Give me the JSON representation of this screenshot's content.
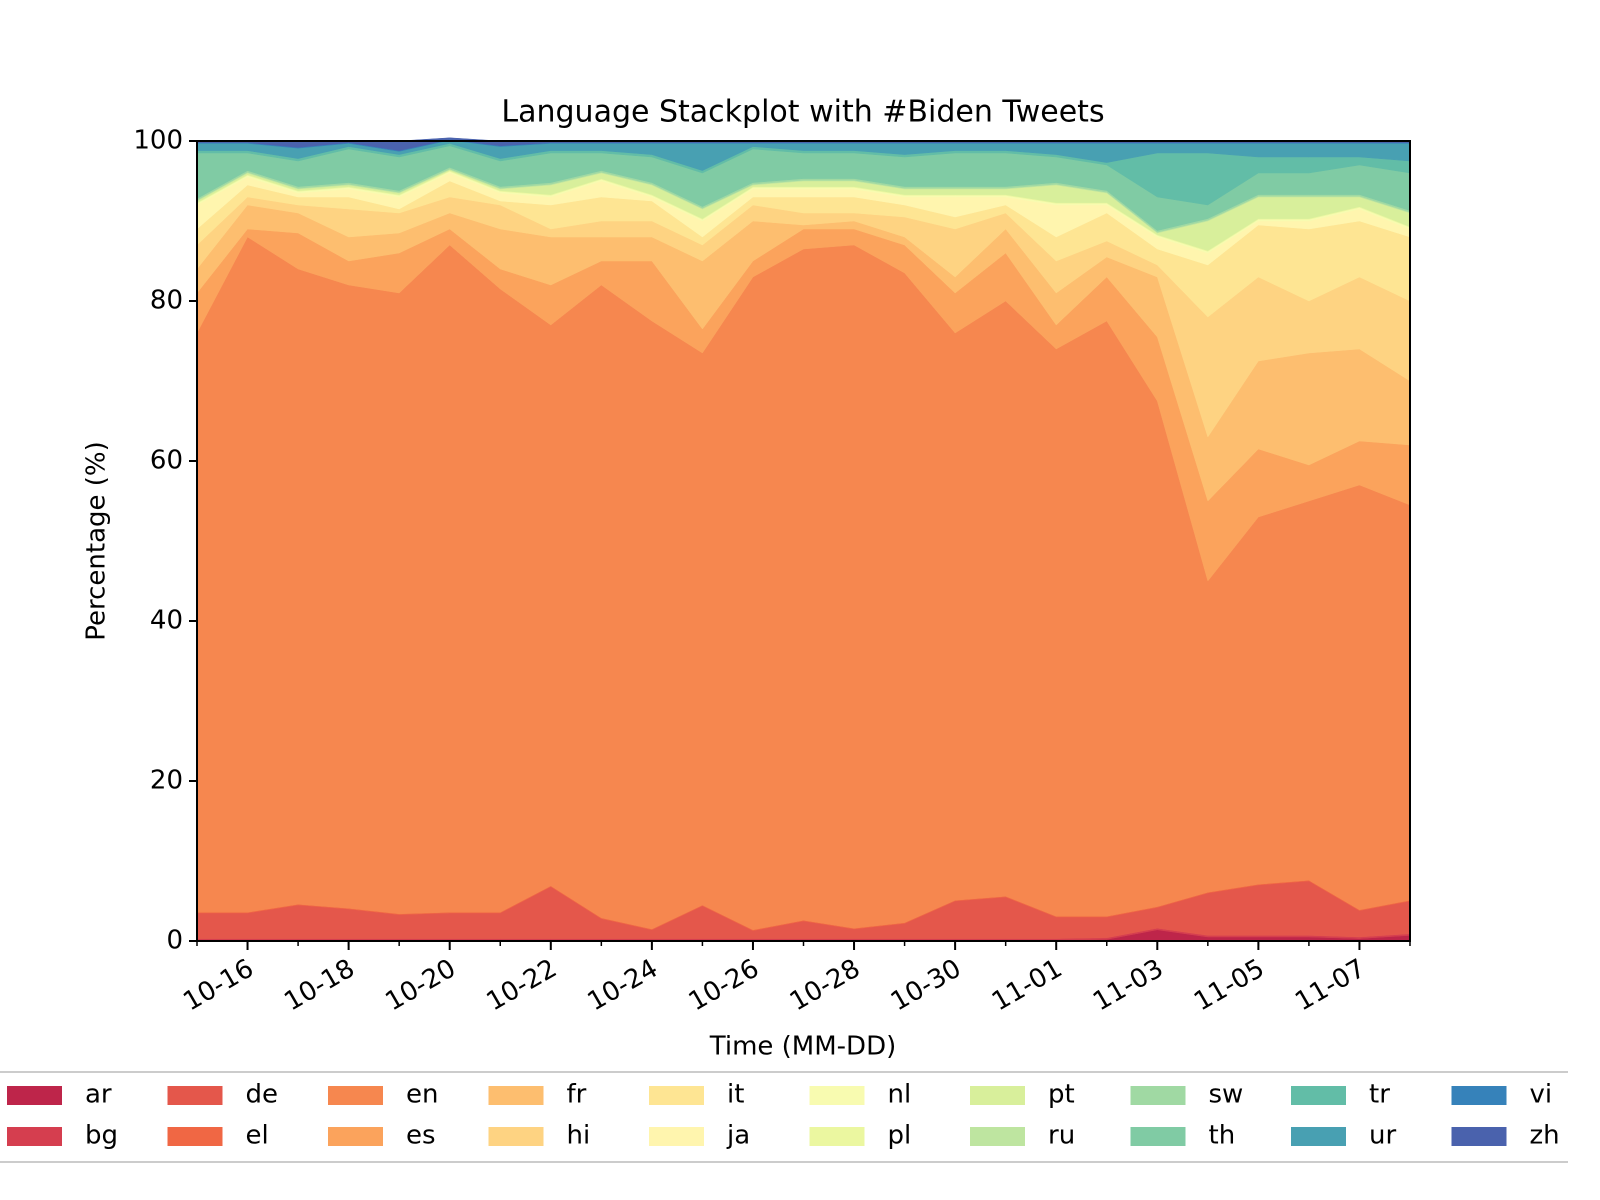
{
  "chart_data": {
    "type": "stackplot",
    "title": "Language Stackplot with #Biden Tweets",
    "x_label": "Time (MM-DD)",
    "y_label": "Percentage (%)",
    "x": [
      "10-15",
      "10-16",
      "10-17",
      "10-18",
      "10-19",
      "10-20",
      "10-21",
      "10-22",
      "10-23",
      "10-24",
      "10-25",
      "10-26",
      "10-27",
      "10-28",
      "10-29",
      "10-30",
      "10-31",
      "11-01",
      "11-02",
      "11-03",
      "11-04",
      "11-05",
      "11-06",
      "11-07",
      "11-08"
    ],
    "xticks": [
      "10-16",
      "10-18",
      "10-20",
      "10-22",
      "10-24",
      "10-26",
      "10-28",
      "10-30",
      "11-01",
      "11-03",
      "11-05",
      "11-07"
    ],
    "ylim": [
      0,
      100
    ],
    "yticks": [
      0,
      20,
      40,
      60,
      80,
      100
    ],
    "legend": "bottom",
    "series": [
      {
        "name": "ar",
        "color": "#be254a",
        "values": [
          0.1,
          0.1,
          0.1,
          0.1,
          0.1,
          0.1,
          0.1,
          0.1,
          0.1,
          0.1,
          0.1,
          0.1,
          0.1,
          0.1,
          0.1,
          0.1,
          0.1,
          0.1,
          0.2,
          1.4,
          0.5,
          0.5,
          0.5,
          0.3,
          0.7
        ]
      },
      {
        "name": "bg",
        "color": "#d53e4f",
        "values": [
          0.2,
          0.2,
          0.2,
          0.2,
          0.2,
          0.2,
          0.2,
          0.2,
          0.2,
          0.2,
          0.2,
          0.2,
          0.2,
          0.2,
          0.2,
          0.2,
          0.2,
          0.2,
          0.2,
          0.2,
          0.2,
          0.2,
          0.2,
          0.2,
          0.2
        ]
      },
      {
        "name": "de",
        "color": "#e4574b",
        "values": [
          3.2,
          3.2,
          4.2,
          3.7,
          3.0,
          3.2,
          3.2,
          6.5,
          2.5,
          1.1,
          4.1,
          1.0,
          2.2,
          1.2,
          1.9,
          4.7,
          5.2,
          2.7,
          2.6,
          2.6,
          5.3,
          6.3,
          6.8,
          3.3,
          4.1
        ]
      },
      {
        "name": "el",
        "color": "#f06744",
        "values": [
          0.1,
          0.1,
          0.1,
          0.1,
          0.1,
          0.1,
          0.1,
          0.1,
          0.1,
          0.1,
          0.1,
          0.1,
          0.1,
          0.1,
          0.1,
          0.1,
          0.1,
          0.1,
          0.1,
          0.1,
          0.1,
          0.1,
          0.1,
          0.1,
          0.1
        ]
      },
      {
        "name": "en",
        "color": "#f6874f",
        "values": [
          72.4,
          84.4,
          79.4,
          77.9,
          77.6,
          83.4,
          77.9,
          70.1,
          79.1,
          76,
          69,
          81.6,
          83.9,
          85.4,
          81.2,
          70.9,
          74.4,
          70.9,
          74.4,
          63.2,
          38.9,
          45.9,
          47.4,
          53.1,
          49.4
        ]
      },
      {
        "name": "es",
        "color": "#fba35c",
        "values": [
          5,
          1,
          4.5,
          3,
          5,
          2,
          2.5,
          5,
          3,
          7.5,
          3,
          2,
          2.5,
          2,
          3.5,
          5,
          6,
          3,
          5.5,
          8,
          10,
          8.5,
          4.5,
          5.5,
          7.5
        ]
      },
      {
        "name": "fr",
        "color": "#fdbe6f",
        "values": [
          3,
          3,
          2.5,
          3,
          2.5,
          2,
          5,
          6,
          3,
          3,
          8.5,
          5,
          0.5,
          1,
          1,
          2,
          3,
          4,
          2.5,
          7.5,
          8,
          11,
          14,
          11.5,
          8
        ]
      },
      {
        "name": "hi",
        "color": "#fed382",
        "values": [
          3,
          1,
          1,
          3.5,
          2.5,
          2,
          3,
          1,
          2,
          2,
          2,
          2,
          1.5,
          1,
          2.5,
          6,
          2,
          4,
          2,
          1.5,
          15,
          10.5,
          6.5,
          9,
          10
        ]
      },
      {
        "name": "it",
        "color": "#fee593",
        "values": [
          2,
          1.5,
          1,
          1.5,
          0.5,
          2,
          0.5,
          3,
          3,
          2.5,
          1,
          1,
          2,
          2,
          1.5,
          1.5,
          1,
          3,
          3.5,
          2,
          6.5,
          6.5,
          9,
          7,
          8
        ]
      },
      {
        "name": "ja",
        "color": "#fff5ae",
        "values": [
          3,
          1,
          0.5,
          1,
          1.5,
          1,
          1,
          1,
          2,
          0.5,
          2,
          1,
          1,
          1,
          1,
          2.5,
          1,
          4,
          1,
          1.5,
          1.5,
          0.5,
          1,
          1.5,
          1
        ]
      },
      {
        "name": "nl",
        "color": "#f8fbb0",
        "values": [
          0.2,
          0.2,
          0.2,
          0.2,
          0.2,
          0.2,
          0.2,
          0.2,
          0.2,
          0.2,
          0.2,
          0.2,
          0.2,
          0.2,
          0.2,
          0.2,
          0.2,
          0.2,
          0.2,
          0.2,
          0.2,
          0.2,
          0.2,
          0.2,
          0.2
        ]
      },
      {
        "name": "pl",
        "color": "#ebf7a0",
        "values": [
          0.1,
          0.1,
          0.1,
          0.1,
          0.1,
          0.1,
          0.1,
          0.1,
          0.1,
          0.1,
          0.1,
          0.1,
          0.1,
          0.1,
          0.1,
          0.1,
          0.1,
          0.1,
          0.1,
          0.1,
          0.1,
          0.1,
          0.1,
          0.1,
          0.1
        ]
      },
      {
        "name": "pt",
        "color": "#d8ef9b",
        "values": [
          0.2,
          0.2,
          0.2,
          0.2,
          0.2,
          0.1,
          0.2,
          1.2,
          0.7,
          1.2,
          1.2,
          0.2,
          0.7,
          0.7,
          0.7,
          0.7,
          0.7,
          2.2,
          1.2,
          0.2,
          3.7,
          2.7,
          2.7,
          1.2,
          1.7
        ]
      },
      {
        "name": "ru",
        "color": "#bee5a0",
        "values": [
          0.1,
          0.1,
          0.1,
          0.1,
          0.1,
          0.1,
          0.1,
          0.1,
          0.1,
          0.1,
          0.1,
          0.1,
          0.1,
          0.1,
          0.1,
          0.1,
          0.1,
          0.1,
          0.1,
          0.1,
          0.1,
          0.1,
          0.1,
          0.1,
          0.1
        ]
      },
      {
        "name": "sw",
        "color": "#a0d9a3",
        "values": [
          0.2,
          0.2,
          0.2,
          0.2,
          0.2,
          0.2,
          0.2,
          0.2,
          0.2,
          0.2,
          0.2,
          0.2,
          0.2,
          0.2,
          0.2,
          0.2,
          0.2,
          0.2,
          0.2,
          0.2,
          0.2,
          0.2,
          0.2,
          0.2,
          0.2
        ]
      },
      {
        "name": "th",
        "color": "#80cba4",
        "values": [
          5.7,
          2.2,
          3.2,
          4.2,
          4.2,
          2.7,
          3.2,
          3.7,
          2.2,
          3.2,
          4.2,
          4.2,
          3.2,
          3.2,
          3.7,
          4.2,
          4.2,
          3.2,
          3.2,
          4.2,
          1.7,
          2.7,
          2.7,
          3.7,
          4.7
        ]
      },
      {
        "name": "tr",
        "color": "#62bda7",
        "values": [
          0.3,
          0.3,
          0.3,
          0.3,
          0.3,
          0.3,
          0.3,
          0.3,
          0.3,
          0.3,
          0.3,
          0.3,
          0.3,
          0.3,
          0.3,
          0.3,
          0.3,
          0.3,
          0.3,
          5.5,
          6.5,
          2,
          2,
          1,
          1.5
        ]
      },
      {
        "name": "ur",
        "color": "#48a0b2",
        "values": [
          0.9,
          0.9,
          1.3,
          0.4,
          0.4,
          0.4,
          1.5,
          0.9,
          0.9,
          1.4,
          3.4,
          0.4,
          0.9,
          0.9,
          1.4,
          0.9,
          0.9,
          1.4,
          2.4,
          1.2,
          1.2,
          1.7,
          1.7,
          1.7,
          2.2
        ]
      },
      {
        "name": "vi",
        "color": "#3682ba",
        "values": [
          0.1,
          0.1,
          0.1,
          0.1,
          0.1,
          0.1,
          0.1,
          0.1,
          0.1,
          0.1,
          0.1,
          0.1,
          0.1,
          0.1,
          0.1,
          0.1,
          0.1,
          0.1,
          0.1,
          0.1,
          0.1,
          0.1,
          0.1,
          0.1,
          0.1
        ]
      },
      {
        "name": "zh",
        "color": "#4a62ad",
        "values": [
          0.2,
          0.2,
          0.8,
          0.2,
          1.2,
          0.2,
          0.6,
          0.2,
          0.2,
          0.2,
          0.2,
          0.2,
          0.2,
          0.2,
          0.2,
          0.2,
          0.2,
          0.2,
          0.2,
          0.2,
          0.2,
          0.2,
          0.2,
          0.2,
          0.2
        ]
      }
    ]
  }
}
